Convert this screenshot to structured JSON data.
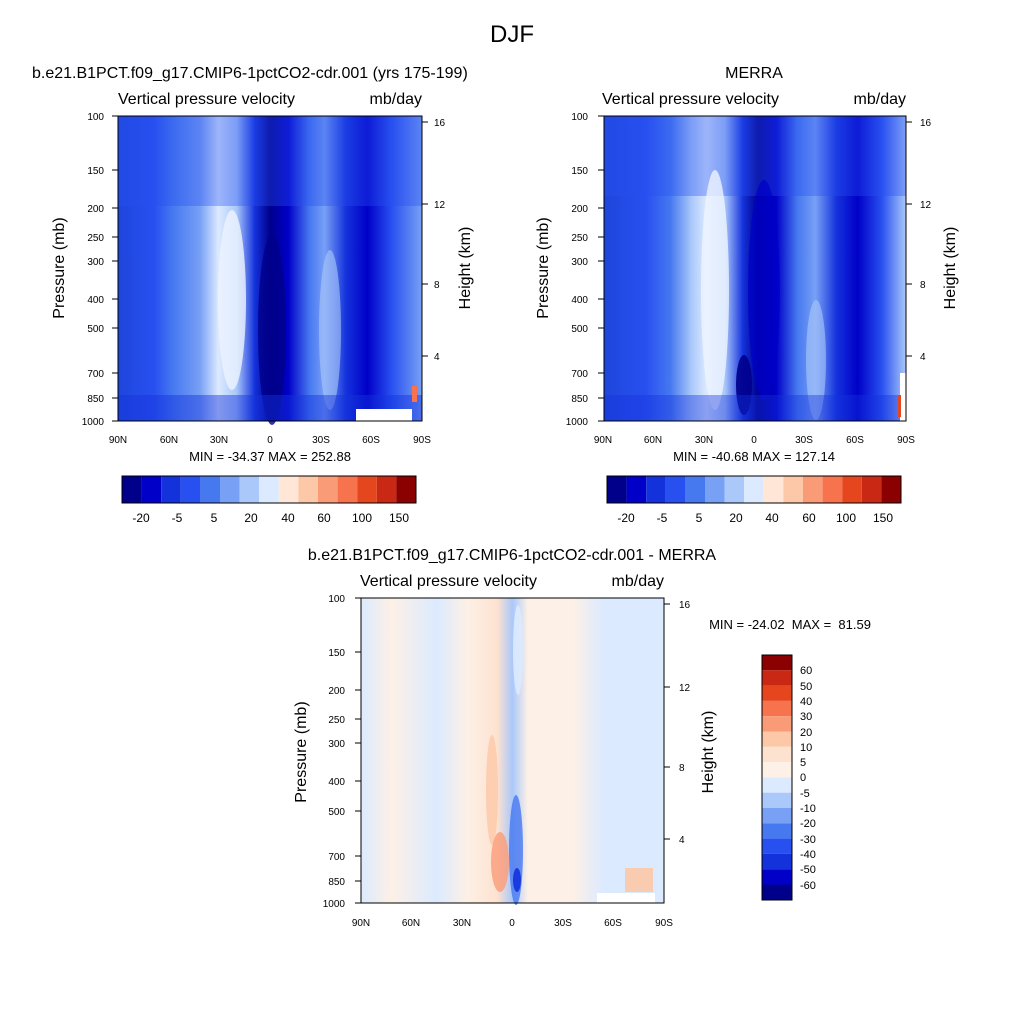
{
  "figure": {
    "title": "DJF"
  },
  "panels": [
    {
      "id": "model",
      "title": "b.e21.B1PCT.f09_g17.CMIP6-1pctCO2-cdr.001 (yrs 175-199)",
      "left_label": "Vertical pressure velocity",
      "right_label": "mb/day",
      "stats": "MIN = -34.37  MAX = 252.88",
      "colorbar_labels": [
        "-20",
        "-5",
        "5",
        "20",
        "40",
        "60",
        "100",
        "150"
      ]
    },
    {
      "id": "obs",
      "title": "MERRA",
      "left_label": "Vertical pressure velocity",
      "right_label": "mb/day",
      "stats": "MIN = -40.68  MAX = 127.14",
      "colorbar_labels": [
        "-20",
        "-5",
        "5",
        "20",
        "40",
        "60",
        "100",
        "150"
      ]
    },
    {
      "id": "diff",
      "title": "b.e21.B1PCT.f09_g17.CMIP6-1pctCO2-cdr.001 - MERRA",
      "left_label": "Vertical pressure velocity",
      "right_label": "mb/day",
      "stats": "MIN = -24.02  MAX =  81.59",
      "colorbar_labels": [
        "60",
        "50",
        "40",
        "30",
        "20",
        "10",
        "5",
        "0",
        "-5",
        "-10",
        "-20",
        "-30",
        "-40",
        "-50",
        "-60"
      ]
    }
  ],
  "axes": {
    "ylabel": "Pressure (mb)",
    "y2label": "Height (km)",
    "pressure_ticks": [
      "100",
      "150",
      "200",
      "250",
      "300",
      "400",
      "500",
      "700",
      "850",
      "1000"
    ],
    "height_ticks": [
      "16",
      "12",
      "8",
      "4"
    ],
    "lat_ticks": [
      "90N",
      "60N",
      "30N",
      "0",
      "30S",
      "60S",
      "90S"
    ]
  },
  "colors": {
    "main_scale": [
      "#00008b",
      "#0000c8",
      "#1432dc",
      "#2850f0",
      "#4678f0",
      "#78a0f5",
      "#aac8fa",
      "#dceaff",
      "#ffe6d6",
      "#fcc8a8",
      "#fa9b78",
      "#f6734e",
      "#e6461e",
      "#c82814",
      "#8b0000"
    ],
    "diff_scale": [
      "#8b0000",
      "#c82814",
      "#e6461e",
      "#f6734e",
      "#fa9b78",
      "#fcc8a8",
      "#fde2d0",
      "#fdf0e6",
      "#dceaff",
      "#aac8fa",
      "#78a0f5",
      "#4678f0",
      "#2850f0",
      "#1432dc",
      "#0000c8",
      "#00008b"
    ]
  },
  "chart_data": [
    {
      "type": "heatmap",
      "title": "b.e21.B1PCT.f09_g17.CMIP6-1pctCO2-cdr.001 (yrs 175-199)",
      "variable": "Vertical pressure velocity",
      "units": "mb/day",
      "xlabel": "",
      "ylabel": "Pressure (mb)",
      "y2label": "Height (km)",
      "x_range": [
        "90N",
        "90S"
      ],
      "y_range_mb": [
        100,
        1000
      ],
      "y_ticks_mb": [
        100,
        150,
        200,
        250,
        300,
        400,
        500,
        700,
        850,
        1000
      ],
      "y2_ticks_km": [
        16,
        12,
        8,
        4
      ],
      "min": -34.37,
      "max": 252.88,
      "colorbar_levels": [
        -20,
        -5,
        5,
        20,
        40,
        60,
        100,
        150
      ]
    },
    {
      "type": "heatmap",
      "title": "MERRA",
      "variable": "Vertical pressure velocity",
      "units": "mb/day",
      "ylabel": "Pressure (mb)",
      "y2label": "Height (km)",
      "x_range": [
        "90N",
        "90S"
      ],
      "y_range_mb": [
        100,
        1000
      ],
      "min": -40.68,
      "max": 127.14,
      "colorbar_levels": [
        -20,
        -5,
        5,
        20,
        40,
        60,
        100,
        150
      ]
    },
    {
      "type": "heatmap",
      "title": "b.e21.B1PCT.f09_g17.CMIP6-1pctCO2-cdr.001 - MERRA",
      "variable": "Vertical pressure velocity",
      "units": "mb/day",
      "ylabel": "Pressure (mb)",
      "y2label": "Height (km)",
      "x_range": [
        "90N",
        "90S"
      ],
      "y_range_mb": [
        100,
        1000
      ],
      "min": -24.02,
      "max": 81.59,
      "colorbar_levels": [
        60,
        50,
        40,
        30,
        20,
        10,
        5,
        0,
        -5,
        -10,
        -20,
        -30,
        -40,
        -50,
        -60
      ]
    }
  ]
}
